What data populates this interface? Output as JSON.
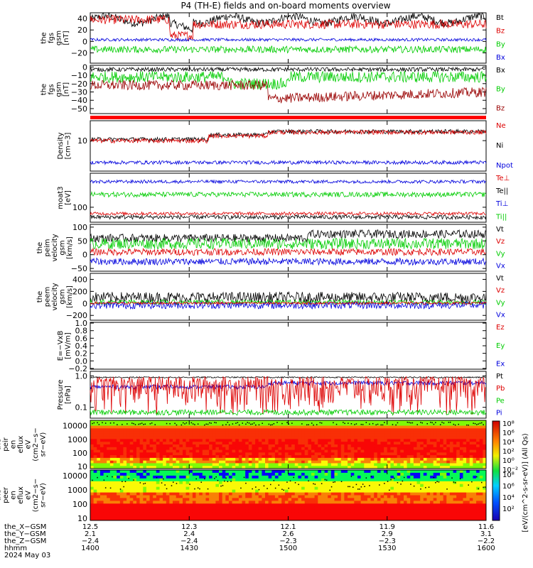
{
  "title": "P4 (TH-E) fields and on-board moments overview",
  "panels": [
    {
      "ylabel": [
        "the",
        "fgs",
        "gsm",
        "[nT]"
      ],
      "ticks": [
        {
          "v": 40,
          "t": "40"
        },
        {
          "v": 20,
          "t": "20"
        },
        {
          "v": 0,
          "t": "0"
        },
        {
          "v": -20,
          "t": "−20"
        }
      ],
      "ylim": [
        -38,
        50
      ],
      "legend": [
        {
          "t": "Bt",
          "c": "#000000"
        },
        {
          "t": "Bz",
          "c": "#dd0000"
        },
        {
          "t": "By",
          "c": "#00cc00"
        },
        {
          "t": "Bx",
          "c": "#0000dd"
        }
      ]
    },
    {
      "ylabel": [
        "the",
        "fgs",
        "gsm",
        "[nT]"
      ],
      "ticks": [
        {
          "v": 0,
          "t": "0"
        },
        {
          "v": -10,
          "t": "−10"
        },
        {
          "v": -20,
          "t": "−20"
        },
        {
          "v": -30,
          "t": "−30"
        },
        {
          "v": -40,
          "t": "−40"
        },
        {
          "v": -50,
          "t": "−50"
        }
      ],
      "ylim": [
        -56,
        2
      ],
      "legend": [
        {
          "t": "Bx",
          "c": "#000000"
        },
        {
          "t": "By",
          "c": "#00cc00"
        },
        {
          "t": "Bz",
          "c": "#990000"
        }
      ]
    },
    {
      "ylabel": [
        "Density",
        "[cm−3]"
      ],
      "ticks": [
        {
          "v": 10,
          "t": "10"
        }
      ],
      "ylim": [
        1.2,
        40
      ],
      "log": true,
      "legend": [
        {
          "t": "Ne",
          "c": "#dd0000"
        },
        {
          "t": "Ni",
          "c": "#000000"
        },
        {
          "t": "Npot",
          "c": "#0000dd"
        }
      ]
    },
    {
      "ylabel": [
        "moat3",
        "[eV]"
      ],
      "ticks": [
        {
          "v": 100,
          "t": "100"
        }
      ],
      "ylim": [
        40,
        800
      ],
      "log": true,
      "legend": [
        {
          "t": "Te⊥",
          "c": "#dd0000"
        },
        {
          "t": "Te||",
          "c": "#000000"
        },
        {
          "t": "Ti⊥",
          "c": "#0000dd"
        },
        {
          "t": "Ti||",
          "c": "#00cc00"
        }
      ]
    },
    {
      "ylabel": [
        "the",
        "peim",
        "velocity",
        "gsm",
        "[km/s]"
      ],
      "ticks": [
        {
          "v": 100,
          "t": "100"
        },
        {
          "v": 50,
          "t": "50"
        },
        {
          "v": 0,
          "t": "0"
        },
        {
          "v": -50,
          "t": "−50"
        }
      ],
      "ylim": [
        -60,
        110
      ],
      "legend": [
        {
          "t": "Vt",
          "c": "#000000"
        },
        {
          "t": "Vz",
          "c": "#dd0000"
        },
        {
          "t": "Vy",
          "c": "#00cc00"
        },
        {
          "t": "Vx",
          "c": "#0000dd"
        }
      ]
    },
    {
      "ylabel": [
        "the",
        "peem",
        "velocity",
        "gsm",
        "[km/s]"
      ],
      "ticks": [
        {
          "v": 400,
          "t": "400"
        },
        {
          "v": 200,
          "t": "200"
        },
        {
          "v": 0,
          "t": "0"
        },
        {
          "v": -200,
          "t": "−200"
        }
      ],
      "ylim": [
        -280,
        500
      ],
      "legend": [
        {
          "t": "Vt",
          "c": "#000000"
        },
        {
          "t": "Vz",
          "c": "#dd0000"
        },
        {
          "t": "Vy",
          "c": "#00cc00"
        },
        {
          "t": "Vx",
          "c": "#0000dd"
        }
      ]
    },
    {
      "ylabel": [
        "E=−VxB",
        "[mV/m]"
      ],
      "ticks": [
        {
          "v": 1.0,
          "t": "1.0"
        },
        {
          "v": 0.8,
          "t": "0.8"
        },
        {
          "v": 0.6,
          "t": "0.6"
        },
        {
          "v": 0.4,
          "t": "0.4"
        },
        {
          "v": 0.2,
          "t": "0.2"
        },
        {
          "v": 0.0,
          "t": "0.0"
        },
        {
          "v": -0.2,
          "t": "−0.2"
        }
      ],
      "ylim": [
        -0.22,
        1.02
      ],
      "legend": [
        {
          "t": "Ez",
          "c": "#dd0000"
        },
        {
          "t": "Ey",
          "c": "#00cc00"
        },
        {
          "t": "Ex",
          "c": "#0000dd"
        }
      ]
    },
    {
      "ylabel": [
        "Pressure",
        "[nPa]"
      ],
      "ticks": [
        {
          "v": 1.0,
          "t": "1.0"
        },
        {
          "v": 0.1,
          "t": "0.1"
        }
      ],
      "ylim": [
        0.045,
        1.4
      ],
      "log": true,
      "legend": [
        {
          "t": "Pt",
          "c": "#000000"
        },
        {
          "t": "Pb",
          "c": "#dd0000"
        },
        {
          "t": "Pe",
          "c": "#00cc00"
        },
        {
          "t": "Pi",
          "c": "#0000dd"
        }
      ]
    },
    {
      "ylabel": [
        "the",
        "peir",
        "en",
        "eflux",
        "eV",
        "(cm2−s−",
        "sr−eV)"
      ],
      "ticks": [
        {
          "v": 10000,
          "t": "10000"
        },
        {
          "v": 1000,
          "t": "1000"
        },
        {
          "v": 100,
          "t": "100"
        },
        {
          "v": 10,
          "t": "10"
        }
      ],
      "ylim": [
        7,
        25000
      ],
      "log": true
    },
    {
      "ylabel": [
        "the",
        "peer",
        "en",
        "eflux",
        "eV",
        "(cm2−s−",
        "sr−eV)"
      ],
      "ticks": [
        {
          "v": 10000,
          "t": "10000"
        },
        {
          "v": 1000,
          "t": "1000"
        },
        {
          "v": 100,
          "t": "100"
        },
        {
          "v": 10,
          "t": "10"
        }
      ],
      "ylim": [
        7,
        25000
      ],
      "log": true
    }
  ],
  "colorbar": {
    "label": "[eV/(cm^2-s-sr-eV)] (All Qs)",
    "ticks_top": [
      "10⁸",
      "10⁶",
      "10⁴",
      "10²",
      "10⁰",
      "10⁻²"
    ],
    "ticks_bottom": [
      "10⁸",
      "10⁶",
      "10⁴",
      "10²"
    ]
  },
  "xaxis": {
    "tick_labels": [
      {
        "row1": "12.5",
        "row2": "2.1",
        "row3": "−2.4",
        "row4": "1400"
      },
      {
        "row1": "12.3",
        "row2": "2.4",
        "row3": "−2.4",
        "row4": "1430"
      },
      {
        "row1": "12.1",
        "row2": "2.6",
        "row3": "−2.3",
        "row4": "1500"
      },
      {
        "row1": "11.9",
        "row2": "2.9",
        "row3": "−2.3",
        "row4": "1530"
      },
      {
        "row1": "11.6",
        "row2": "3.1",
        "row3": "−2.2",
        "row4": "1600"
      }
    ],
    "row_labels": [
      "the_X−GSM",
      "the_Y−GSM",
      "the_Z−GSM",
      "hhmm",
      "2024 May 03"
    ]
  },
  "chart_data": {
    "type": "line",
    "time_range": [
      "14:00",
      "16:00"
    ],
    "series": [
      {
        "panel": 1,
        "name": "Bt",
        "approx_range": [
          25,
          48
        ]
      },
      {
        "panel": 1,
        "name": "Bz",
        "approx_range": [
          5,
          45
        ]
      },
      {
        "panel": 1,
        "name": "By",
        "approx_range": [
          -25,
          -5
        ]
      },
      {
        "panel": 1,
        "name": "Bx",
        "approx_range": [
          0,
          8
        ]
      },
      {
        "panel": 2,
        "name": "Bx",
        "approx_range": [
          -10,
          0
        ]
      },
      {
        "panel": 2,
        "name": "By",
        "approx_range": [
          -25,
          -5
        ]
      },
      {
        "panel": 2,
        "name": "Bz",
        "approx_range": [
          -55,
          -15
        ]
      },
      {
        "panel": 3,
        "name": "Ne",
        "approx_range": [
          6,
          25
        ]
      },
      {
        "panel": 3,
        "name": "Npot",
        "approx_range": [
          1.8,
          3
        ]
      },
      {
        "panel": 4,
        "name": "Ti||",
        "approx_range": [
          150,
          300
        ]
      },
      {
        "panel": 4,
        "name": "Te⊥",
        "approx_range": [
          60,
          80
        ]
      },
      {
        "panel": 5,
        "name": "Vt",
        "approx_range": [
          40,
          100
        ]
      },
      {
        "panel": 5,
        "name": "Vx",
        "approx_range": [
          -50,
          0
        ]
      },
      {
        "panel": 6,
        "name": "Vt",
        "approx_range": [
          50,
          300
        ]
      },
      {
        "panel": 8,
        "name": "Pt",
        "approx_range": [
          0.8,
          1.1
        ]
      },
      {
        "panel": 8,
        "name": "Pb",
        "approx_range": [
          0.1,
          1.0
        ]
      },
      {
        "panel": 8,
        "name": "Pe",
        "approx_range": [
          0.05,
          0.1
        ]
      },
      {
        "panel": 8,
        "name": "Pi",
        "approx_range": [
          0.3,
          0.7
        ]
      }
    ]
  }
}
